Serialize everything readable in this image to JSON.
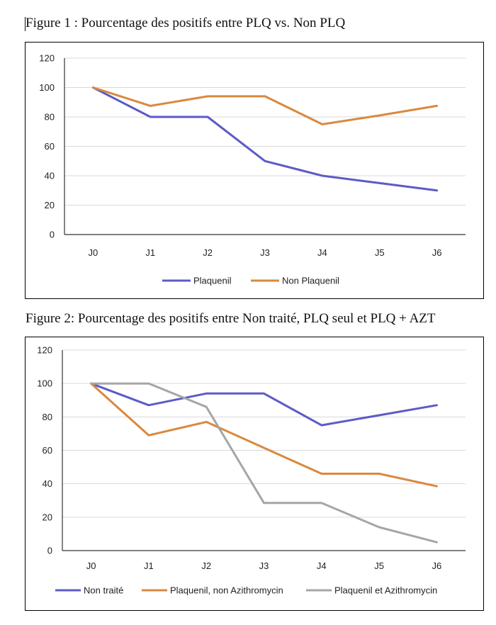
{
  "figure1": {
    "caption": "Figure 1 : Pourcentage des positifs entre PLQ vs. Non PLQ"
  },
  "figure2": {
    "caption": "Figure 2: Pourcentage des positifs entre Non traité, PLQ seul et PLQ + AZT"
  },
  "chart_data": [
    {
      "type": "line",
      "title": "Figure 1 : Pourcentage des positifs entre PLQ vs. Non PLQ",
      "categories": [
        "J0",
        "J1",
        "J2",
        "J3",
        "J4",
        "J5",
        "J6"
      ],
      "ylim": [
        0,
        120
      ],
      "yticks": [
        0,
        20,
        40,
        60,
        80,
        100,
        120
      ],
      "grid": true,
      "legend_position": "bottom",
      "series": [
        {
          "name": "Plaquenil",
          "color": "#5b5bc8",
          "values": [
            100,
            80,
            80,
            50,
            40,
            35,
            30
          ]
        },
        {
          "name": "Non Plaquenil",
          "color": "#d9893f",
          "values": [
            100,
            87.5,
            94,
            94,
            75,
            81,
            87.5
          ]
        }
      ]
    },
    {
      "type": "line",
      "title": "Figure 2: Pourcentage des positifs entre Non traité, PLQ seul et PLQ + AZT",
      "categories": [
        "J0",
        "J1",
        "J2",
        "J3",
        "J4",
        "J5",
        "J6"
      ],
      "ylim": [
        0,
        120
      ],
      "yticks": [
        0,
        20,
        40,
        60,
        80,
        100,
        120
      ],
      "grid": true,
      "legend_position": "bottom",
      "series": [
        {
          "name": "Non traité",
          "color": "#5b5bc8",
          "values": [
            100,
            87,
            94,
            94,
            75,
            81,
            87
          ]
        },
        {
          "name": "Plaquenil, non Azithromycin",
          "color": "#d9893f",
          "values": [
            100,
            69,
            77,
            61.5,
            46,
            46,
            38.5
          ]
        },
        {
          "name": "Plaquenil et Azithromycin",
          "color": "#a6a6a6",
          "values": [
            100,
            100,
            86,
            28.5,
            28.5,
            14,
            5
          ]
        }
      ]
    }
  ]
}
